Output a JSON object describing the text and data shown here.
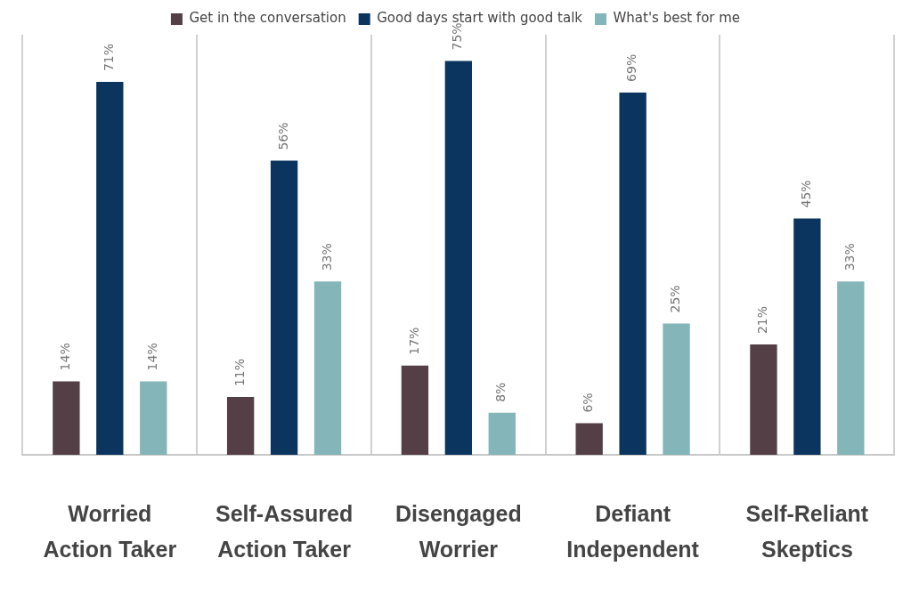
{
  "chart_data": {
    "type": "bar",
    "categories": [
      "Worried Action Taker",
      "Self-Assured Action Taker",
      "Disengaged Worrier",
      "Defiant Independent",
      "Self-Reliant Skeptics"
    ],
    "series": [
      {
        "name": "Get in the conversation",
        "color": "#543f46",
        "values": [
          14,
          11,
          17,
          6,
          21
        ],
        "value_labels": [
          "14%",
          "11%",
          "17%",
          "6%",
          "21%"
        ]
      },
      {
        "name": "Good days start with good talk",
        "color": "#0b355f",
        "values": [
          71,
          56,
          75,
          69,
          45
        ],
        "value_labels": [
          "71%",
          "56%",
          "75%",
          "69%",
          "45%"
        ]
      },
      {
        "name": "What's best for me",
        "color": "#84b5b8",
        "values": [
          14,
          33,
          8,
          25,
          33
        ],
        "value_labels": [
          "14%",
          "33%",
          "8%",
          "25%",
          "33%"
        ]
      }
    ],
    "grid": "x",
    "legend": "top"
  }
}
